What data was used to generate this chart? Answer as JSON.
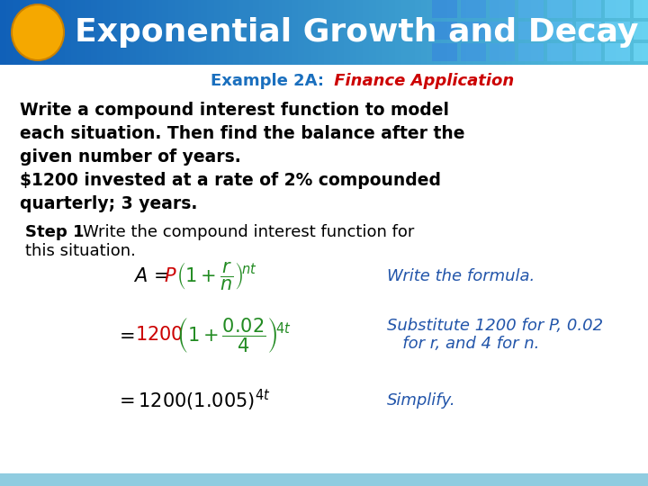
{
  "title": "Exponential Growth and Decay",
  "title_bg_left": "#1a6fbe",
  "title_bg_right": "#4ab8d8",
  "title_text_color": "#ffffff",
  "title_font_size": 26,
  "circle_color": "#f5a800",
  "bg_color": "#ffffff",
  "example_label": "Example 2A:",
  "example_label_color": "#1a6fbe",
  "example_title": " Finance Application",
  "example_title_color": "#cc0000",
  "body_text_color": "#000000",
  "green_color": "#228B22",
  "red_color": "#cc0000",
  "blue_annotation_color": "#2255aa",
  "annotation1": "Write the formula.",
  "annotation2": "Substitute 1200 for P, 0.02\n   for r, and 4 for n.",
  "annotation3": "Simplify.",
  "grid_color": "#60b8d8",
  "bottom_bar_color": "#90cce0"
}
